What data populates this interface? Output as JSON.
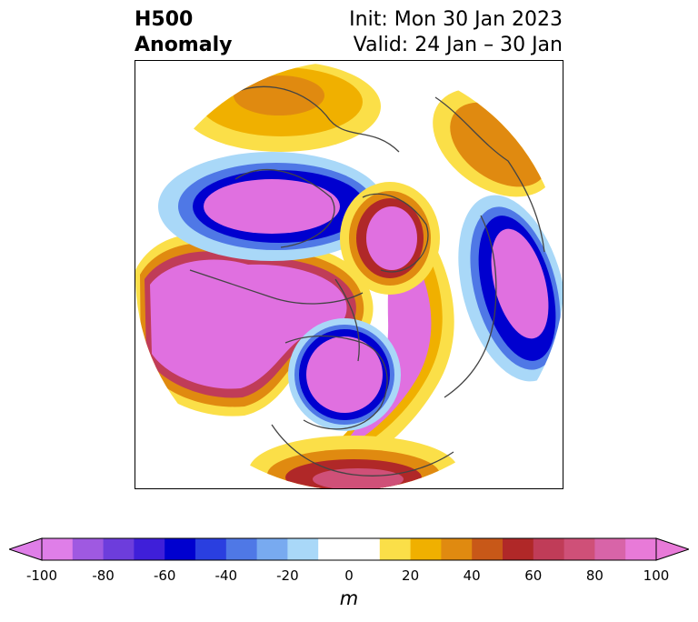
{
  "title": {
    "left_line1": "H500",
    "left_line2": "Anomaly",
    "right_line1": "Init: Mon 30 Jan 2023",
    "right_line2": "Valid: 24 Jan – 30 Jan"
  },
  "colorbar": {
    "unit": "m",
    "ticks": [
      "-100",
      "-80",
      "-60",
      "-40",
      "-20",
      "0",
      "20",
      "40",
      "60",
      "80",
      "100"
    ],
    "extend": "both",
    "colors": [
      "#df7ee8",
      "#9f59e1",
      "#6d3ddc",
      "#3f1fd9",
      "#0000cf",
      "#2a3fe0",
      "#4f78e6",
      "#78aaf0",
      "#a9d8f8",
      "#ffffff",
      "#ffffff",
      "#fbdf48",
      "#f0b000",
      "#e08a10",
      "#c85818",
      "#b02828",
      "#c03c58",
      "#cf5078",
      "#d864a8",
      "#e87ad8"
    ]
  },
  "map": {
    "projection": "north-polar-stereographic",
    "variable": "500 hPa geopotential height anomaly",
    "colors": {
      "strong_negative": "#e070e0",
      "negative_ring": "#0000cf",
      "weak_negative": "#a9d8f8",
      "weak_positive": "#fbdf48",
      "moderate_positive": "#e08a10",
      "strong_positive": "#c03c58",
      "positive_core": "#e070e0",
      "coastline": "#444444"
    }
  }
}
